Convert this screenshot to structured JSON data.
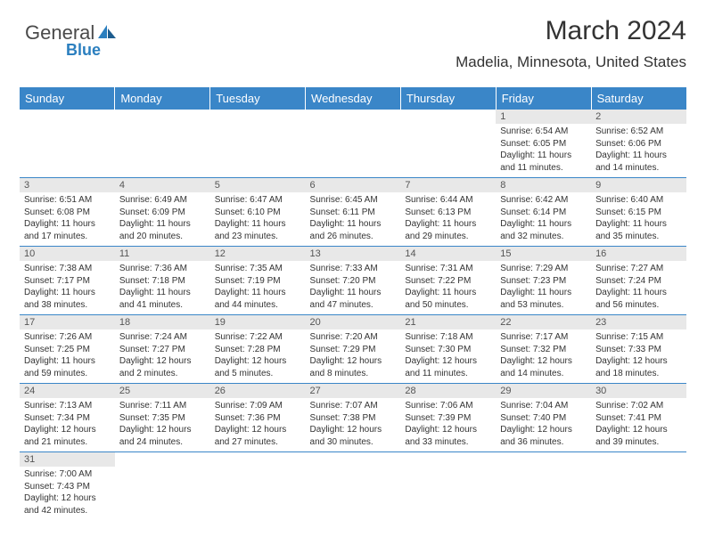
{
  "logo": {
    "word1": "General",
    "word2": "Blue"
  },
  "title": "March 2024",
  "location": "Madelia, Minnesota, United States",
  "headerColor": "#3a86c8",
  "dayHeaderBg": "#e8e8e8",
  "weekdays": [
    "Sunday",
    "Monday",
    "Tuesday",
    "Wednesday",
    "Thursday",
    "Friday",
    "Saturday"
  ],
  "cells": [
    {
      "n": "",
      "empty": true
    },
    {
      "n": "",
      "empty": true
    },
    {
      "n": "",
      "empty": true
    },
    {
      "n": "",
      "empty": true
    },
    {
      "n": "",
      "empty": true
    },
    {
      "n": "1",
      "sr": "Sunrise: 6:54 AM",
      "ss": "Sunset: 6:05 PM",
      "dl": "Daylight: 11 hours and 11 minutes."
    },
    {
      "n": "2",
      "sr": "Sunrise: 6:52 AM",
      "ss": "Sunset: 6:06 PM",
      "dl": "Daylight: 11 hours and 14 minutes."
    },
    {
      "n": "3",
      "sr": "Sunrise: 6:51 AM",
      "ss": "Sunset: 6:08 PM",
      "dl": "Daylight: 11 hours and 17 minutes."
    },
    {
      "n": "4",
      "sr": "Sunrise: 6:49 AM",
      "ss": "Sunset: 6:09 PM",
      "dl": "Daylight: 11 hours and 20 minutes."
    },
    {
      "n": "5",
      "sr": "Sunrise: 6:47 AM",
      "ss": "Sunset: 6:10 PM",
      "dl": "Daylight: 11 hours and 23 minutes."
    },
    {
      "n": "6",
      "sr": "Sunrise: 6:45 AM",
      "ss": "Sunset: 6:11 PM",
      "dl": "Daylight: 11 hours and 26 minutes."
    },
    {
      "n": "7",
      "sr": "Sunrise: 6:44 AM",
      "ss": "Sunset: 6:13 PM",
      "dl": "Daylight: 11 hours and 29 minutes."
    },
    {
      "n": "8",
      "sr": "Sunrise: 6:42 AM",
      "ss": "Sunset: 6:14 PM",
      "dl": "Daylight: 11 hours and 32 minutes."
    },
    {
      "n": "9",
      "sr": "Sunrise: 6:40 AM",
      "ss": "Sunset: 6:15 PM",
      "dl": "Daylight: 11 hours and 35 minutes."
    },
    {
      "n": "10",
      "sr": "Sunrise: 7:38 AM",
      "ss": "Sunset: 7:17 PM",
      "dl": "Daylight: 11 hours and 38 minutes."
    },
    {
      "n": "11",
      "sr": "Sunrise: 7:36 AM",
      "ss": "Sunset: 7:18 PM",
      "dl": "Daylight: 11 hours and 41 minutes."
    },
    {
      "n": "12",
      "sr": "Sunrise: 7:35 AM",
      "ss": "Sunset: 7:19 PM",
      "dl": "Daylight: 11 hours and 44 minutes."
    },
    {
      "n": "13",
      "sr": "Sunrise: 7:33 AM",
      "ss": "Sunset: 7:20 PM",
      "dl": "Daylight: 11 hours and 47 minutes."
    },
    {
      "n": "14",
      "sr": "Sunrise: 7:31 AM",
      "ss": "Sunset: 7:22 PM",
      "dl": "Daylight: 11 hours and 50 minutes."
    },
    {
      "n": "15",
      "sr": "Sunrise: 7:29 AM",
      "ss": "Sunset: 7:23 PM",
      "dl": "Daylight: 11 hours and 53 minutes."
    },
    {
      "n": "16",
      "sr": "Sunrise: 7:27 AM",
      "ss": "Sunset: 7:24 PM",
      "dl": "Daylight: 11 hours and 56 minutes."
    },
    {
      "n": "17",
      "sr": "Sunrise: 7:26 AM",
      "ss": "Sunset: 7:25 PM",
      "dl": "Daylight: 11 hours and 59 minutes."
    },
    {
      "n": "18",
      "sr": "Sunrise: 7:24 AM",
      "ss": "Sunset: 7:27 PM",
      "dl": "Daylight: 12 hours and 2 minutes."
    },
    {
      "n": "19",
      "sr": "Sunrise: 7:22 AM",
      "ss": "Sunset: 7:28 PM",
      "dl": "Daylight: 12 hours and 5 minutes."
    },
    {
      "n": "20",
      "sr": "Sunrise: 7:20 AM",
      "ss": "Sunset: 7:29 PM",
      "dl": "Daylight: 12 hours and 8 minutes."
    },
    {
      "n": "21",
      "sr": "Sunrise: 7:18 AM",
      "ss": "Sunset: 7:30 PM",
      "dl": "Daylight: 12 hours and 11 minutes."
    },
    {
      "n": "22",
      "sr": "Sunrise: 7:17 AM",
      "ss": "Sunset: 7:32 PM",
      "dl": "Daylight: 12 hours and 14 minutes."
    },
    {
      "n": "23",
      "sr": "Sunrise: 7:15 AM",
      "ss": "Sunset: 7:33 PM",
      "dl": "Daylight: 12 hours and 18 minutes."
    },
    {
      "n": "24",
      "sr": "Sunrise: 7:13 AM",
      "ss": "Sunset: 7:34 PM",
      "dl": "Daylight: 12 hours and 21 minutes."
    },
    {
      "n": "25",
      "sr": "Sunrise: 7:11 AM",
      "ss": "Sunset: 7:35 PM",
      "dl": "Daylight: 12 hours and 24 minutes."
    },
    {
      "n": "26",
      "sr": "Sunrise: 7:09 AM",
      "ss": "Sunset: 7:36 PM",
      "dl": "Daylight: 12 hours and 27 minutes."
    },
    {
      "n": "27",
      "sr": "Sunrise: 7:07 AM",
      "ss": "Sunset: 7:38 PM",
      "dl": "Daylight: 12 hours and 30 minutes."
    },
    {
      "n": "28",
      "sr": "Sunrise: 7:06 AM",
      "ss": "Sunset: 7:39 PM",
      "dl": "Daylight: 12 hours and 33 minutes."
    },
    {
      "n": "29",
      "sr": "Sunrise: 7:04 AM",
      "ss": "Sunset: 7:40 PM",
      "dl": "Daylight: 12 hours and 36 minutes."
    },
    {
      "n": "30",
      "sr": "Sunrise: 7:02 AM",
      "ss": "Sunset: 7:41 PM",
      "dl": "Daylight: 12 hours and 39 minutes."
    },
    {
      "n": "31",
      "sr": "Sunrise: 7:00 AM",
      "ss": "Sunset: 7:43 PM",
      "dl": "Daylight: 12 hours and 42 minutes."
    },
    {
      "n": "",
      "empty": true
    },
    {
      "n": "",
      "empty": true
    },
    {
      "n": "",
      "empty": true
    },
    {
      "n": "",
      "empty": true
    },
    {
      "n": "",
      "empty": true
    },
    {
      "n": "",
      "empty": true
    }
  ]
}
